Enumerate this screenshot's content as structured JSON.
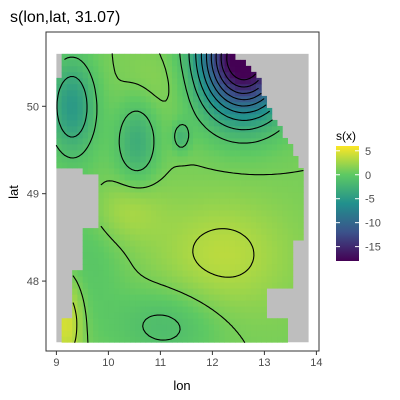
{
  "chart_data": {
    "type": "heatmap",
    "title": "s(lon,lat, 31.07)",
    "xlabel": "lon",
    "ylabel": "lat",
    "xlim": [
      8.8,
      14.05
    ],
    "ylim": [
      47.2,
      50.85
    ],
    "x_ticks": [
      9,
      10,
      11,
      12,
      13,
      14
    ],
    "y_ticks": [
      48,
      49,
      50
    ],
    "domain_x": [
      9.0,
      13.85
    ],
    "domain_y": [
      47.3,
      50.6
    ],
    "grid": false,
    "legend": {
      "title": "s(x)",
      "position": "right",
      "range": [
        -18,
        6
      ],
      "ticks": [
        5,
        0,
        -5,
        -10,
        -15
      ]
    },
    "colors": {
      "missing": "#bebebe",
      "contour": "#000000",
      "frame": "#333333",
      "palette": [
        "#440154",
        "#3b528b",
        "#21908d",
        "#5dc963",
        "#fde725"
      ]
    },
    "features": [
      {
        "lon": 9.3,
        "lat": 50.0,
        "amp": -6.0,
        "sx": 0.32,
        "sy": 0.38
      },
      {
        "lon": 10.55,
        "lat": 49.6,
        "amp": -4.0,
        "sx": 0.28,
        "sy": 0.32
      },
      {
        "lon": 11.4,
        "lat": 49.65,
        "amp": -3.0,
        "sx": 0.12,
        "sy": 0.12
      },
      {
        "lon": 12.6,
        "lat": 50.55,
        "amp": -21.0,
        "sx": 0.6,
        "sy": 0.45
      },
      {
        "lon": 12.2,
        "lat": 48.3,
        "amp": 2.5,
        "sx": 0.9,
        "sy": 0.45
      },
      {
        "lon": 10.3,
        "lat": 48.8,
        "amp": 2.0,
        "sx": 0.5,
        "sy": 0.25
      },
      {
        "lon": 9.2,
        "lat": 47.55,
        "amp": 4.0,
        "sx": 0.22,
        "sy": 0.35
      },
      {
        "lon": 11.1,
        "lat": 47.5,
        "amp": -2.5,
        "sx": 0.7,
        "sy": 0.3
      },
      {
        "lon": 9.6,
        "lat": 48.3,
        "amp": -1.5,
        "sx": 0.5,
        "sy": 0.6
      },
      {
        "lon": 11.2,
        "lat": 50.3,
        "amp": 1.0,
        "sx": 0.6,
        "sy": 0.3
      }
    ],
    "base_level": 1.0,
    "contour_levels": [
      -17,
      -15,
      -13,
      -11,
      -9,
      -7,
      -5,
      -3,
      -1,
      1,
      3
    ]
  }
}
